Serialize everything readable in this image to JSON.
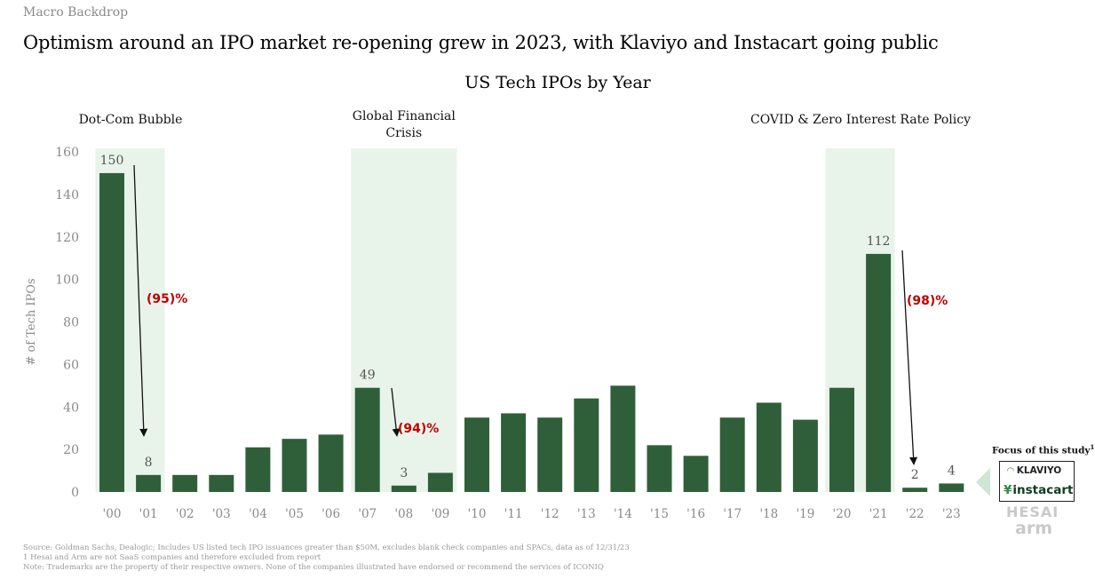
{
  "header": {
    "section_label": "Macro Backdrop",
    "headline": "Optimism around an IPO market re-opening grew in 2023, with Klaviyo and Instacart going public"
  },
  "chart_data": {
    "type": "bar",
    "title": "US Tech IPOs by Year",
    "xlabel": "",
    "ylabel": "# of Tech IPOs",
    "ylim": [
      0,
      160
    ],
    "yticks": [
      0,
      20,
      40,
      60,
      80,
      100,
      120,
      140,
      160
    ],
    "grid": false,
    "categories": [
      "'00",
      "'01",
      "'02",
      "'03",
      "'04",
      "'05",
      "'06",
      "'07",
      "'08",
      "'09",
      "'10",
      "'11",
      "'12",
      "'13",
      "'14",
      "'15",
      "'16",
      "'17",
      "'18",
      "'19",
      "'20",
      "'21",
      "'22",
      "'23"
    ],
    "values": [
      150,
      8,
      8,
      8,
      21,
      25,
      27,
      49,
      3,
      9,
      35,
      37,
      35,
      44,
      50,
      22,
      17,
      35,
      42,
      34,
      49,
      112,
      2,
      4
    ],
    "data_labels": [
      {
        "index": 0,
        "text": "150"
      },
      {
        "index": 1,
        "text": "8"
      },
      {
        "index": 7,
        "text": "49"
      },
      {
        "index": 8,
        "text": "3"
      },
      {
        "index": 21,
        "text": "112"
      },
      {
        "index": 22,
        "text": "2"
      },
      {
        "index": 23,
        "text": "4"
      }
    ],
    "highlight_periods": [
      {
        "label": "Dot-Com Bubble",
        "start_index": 0,
        "end_index": 1
      },
      {
        "label": "Global Financial Crisis",
        "start_index": 7,
        "end_index": 9
      },
      {
        "label": "COVID & Zero Interest Rate Policy",
        "start_index": 20,
        "end_index": 21
      }
    ],
    "declines": [
      {
        "from_index": 0,
        "to_index": 1,
        "label": "(95)%"
      },
      {
        "from_index": 7,
        "to_index": 8,
        "label": "(94)%"
      },
      {
        "from_index": 21,
        "to_index": 22,
        "label": "(98)%"
      }
    ],
    "colors": {
      "bar": "#2f5f39",
      "highlight": "#e8f4ea",
      "decline": "#c00000",
      "axis_text": "#8a8a8a"
    }
  },
  "focus": {
    "title": "Focus of this study",
    "footnote_marker": "1",
    "logos": [
      "KLAVIYO",
      "instacart"
    ],
    "excluded_logos": [
      "HESAI",
      "arm"
    ]
  },
  "footnotes": [
    "Source: Goldman Sachs, Dealogic; Includes US listed tech IPO issuances greater than $50M, excludes blank check companies and SPACs, data as of 12/31/23",
    "1 Hesai and Arm are not SaaS companies and therefore excluded from report",
    "Note: Trademarks are the property of their respective owners. None of the companies illustrated have endorsed or recommend the services of ICONIQ"
  ]
}
